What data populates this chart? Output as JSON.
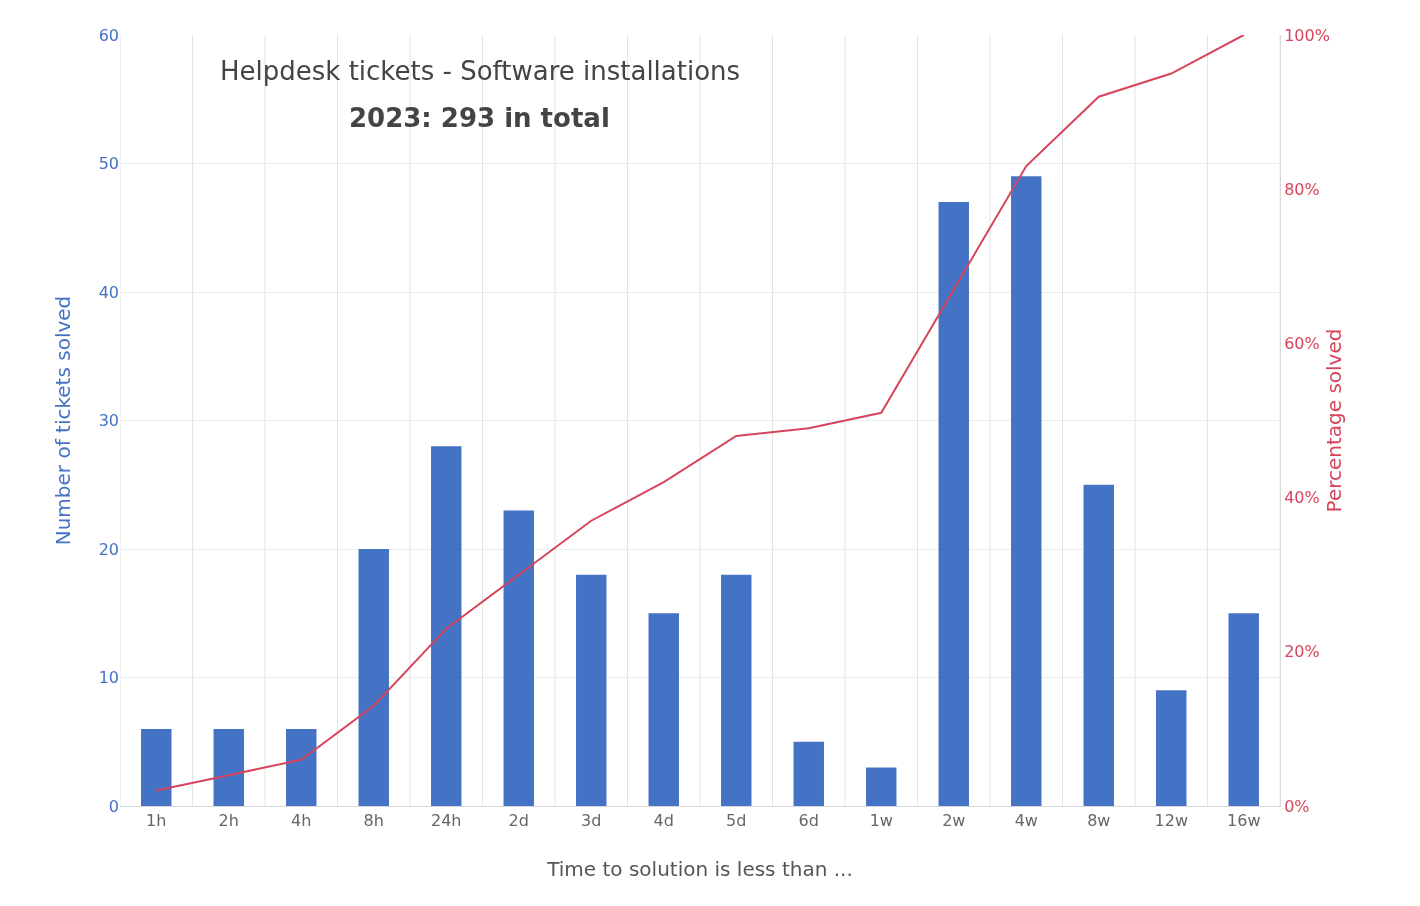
{
  "chart_data": {
    "type": "bar",
    "title": "Helpdesk tickets - Software installations",
    "subtitle": "2023: 293 in total",
    "xlabel": "Time to solution is less than ...",
    "ylabel": "Number of tickets solved",
    "y2label": "Percentage solved",
    "categories": [
      "1h",
      "2h",
      "4h",
      "8h",
      "24h",
      "2d",
      "3d",
      "4d",
      "5d",
      "6d",
      "1w",
      "2w",
      "4w",
      "8w",
      "12w",
      "16w"
    ],
    "series": [
      {
        "color": "#4472c4",
        "values": [
          6,
          6,
          6,
          20,
          28,
          23,
          18,
          15,
          18,
          5,
          3,
          47,
          49,
          25,
          9,
          15
        ]
      },
      {
        "type": "line",
        "axis": "y2",
        "color": "#d6455c",
        "values": [
          2,
          4,
          6,
          13,
          23,
          30,
          37,
          42,
          48,
          49,
          51,
          67,
          83,
          92,
          95,
          100
        ]
      }
    ],
    "ylim": [
      0,
      60
    ],
    "yticks": [
      0,
      10,
      20,
      30,
      40,
      50,
      60
    ],
    "y2lim": [
      0,
      100
    ],
    "y2ticks": [
      {
        "value": 0,
        "label": "0%"
      },
      {
        "value": 20,
        "label": "20%"
      },
      {
        "value": 40,
        "label": "40%"
      },
      {
        "value": 60,
        "label": "60%"
      },
      {
        "value": 80,
        "label": "80%"
      },
      {
        "value": 100,
        "label": "100%"
      }
    ],
    "grid": true,
    "legend": false
  }
}
